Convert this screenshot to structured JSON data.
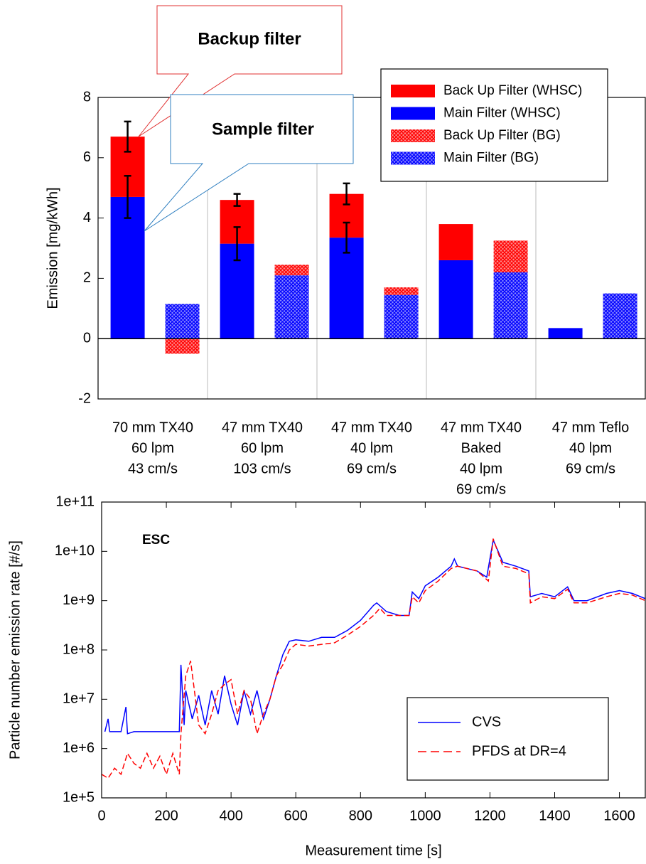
{
  "chart_data": [
    {
      "type": "bar",
      "y_label": "Emission [mg/kWh]",
      "categories": [
        [
          "70 mm TX40",
          "60 lpm",
          "43 cm/s"
        ],
        [
          "47 mm TX40",
          "60 lpm",
          "103 cm/s"
        ],
        [
          "47 mm TX40",
          "40 lpm",
          "69 cm/s"
        ],
        [
          "47 mm TX40",
          "Baked",
          "40 lpm",
          "69 cm/s"
        ],
        [
          "47 mm Teflo",
          "40 lpm",
          "69 cm/s"
        ]
      ],
      "series": [
        {
          "name": "Back Up Filter (WHSC)",
          "color": "#ff0000",
          "pattern": "solid",
          "values": [
            2.0,
            1.45,
            1.45,
            1.2,
            0
          ],
          "errors": [
            0.5,
            0.2,
            0.35,
            null,
            null
          ]
        },
        {
          "name": "Main Filter (WHSC)",
          "color": "#0000ff",
          "pattern": "solid",
          "values": [
            4.7,
            3.15,
            3.35,
            2.6,
            0.35
          ],
          "errors": [
            0.7,
            0.55,
            0.5,
            null,
            null
          ]
        },
        {
          "name": "Back Up Filter (BG)",
          "color": "#ff0000",
          "pattern": "hatch",
          "values": [
            -0.5,
            0.35,
            0.25,
            1.05,
            0
          ]
        },
        {
          "name": "Main Filter (BG)",
          "color": "#0000ff",
          "pattern": "hatch",
          "values": [
            1.15,
            2.1,
            1.45,
            2.2,
            1.5
          ]
        }
      ],
      "ylim": [
        -2,
        8
      ],
      "yticks": [
        -2,
        0,
        2,
        4,
        6,
        8
      ],
      "legend": "upper right",
      "annotations": [
        "Backup filter",
        "Sample filter"
      ]
    },
    {
      "type": "line",
      "x_label": "Measurement time [s]",
      "y_label": "Particle number emission rate [#/s]",
      "annotation": "ESC",
      "yscale": "log",
      "xlim": [
        0,
        1680
      ],
      "xticks": [
        0,
        200,
        400,
        600,
        800,
        1000,
        1200,
        1400,
        1600
      ],
      "ylim": [
        100000,
        100000000000
      ],
      "yticks": [
        {
          "value": 100000,
          "label": "1e+5"
        },
        {
          "value": 1000000,
          "label": "1e+6"
        },
        {
          "value": 10000000,
          "label": "1e+7"
        },
        {
          "value": 100000000,
          "label": "1e+8"
        },
        {
          "value": 1000000000,
          "label": "1e+9"
        },
        {
          "value": 10000000000,
          "label": "1e+10"
        },
        {
          "value": 100000000000,
          "label": "1e+11"
        }
      ],
      "legend": "lower right",
      "series": [
        {
          "name": "CVS",
          "color": "#0000ff",
          "linestyle": "solid",
          "x": [
            10,
            20,
            25,
            40,
            60,
            75,
            80,
            100,
            140,
            180,
            220,
            240,
            245,
            255,
            260,
            280,
            300,
            320,
            340,
            360,
            380,
            400,
            420,
            440,
            460,
            480,
            500,
            520,
            540,
            560,
            580,
            600,
            640,
            680,
            720,
            760,
            800,
            840,
            850,
            880,
            920,
            950,
            960,
            980,
            1000,
            1040,
            1080,
            1090,
            1100,
            1160,
            1190,
            1210,
            1240,
            1280,
            1320,
            1325,
            1360,
            1400,
            1440,
            1460,
            1500,
            1560,
            1600,
            1640,
            1680
          ],
          "values": [
            2200000,
            4000000,
            2200000,
            2200000,
            2200000,
            7000000,
            2000000,
            2200000,
            2200000,
            2200000,
            2200000,
            2200000,
            50000000,
            3000000,
            15000000,
            4000000,
            12000000,
            3000000,
            15000000,
            5000000,
            30000000,
            8000000,
            3000000,
            15000000,
            5000000,
            15000000,
            4000000,
            10000000,
            30000000,
            80000000,
            150000000,
            160000000,
            150000000,
            180000000,
            180000000,
            250000000,
            400000000,
            800000000,
            900000000,
            600000000,
            500000000,
            500000000,
            1500000000,
            1100000000,
            2000000000,
            3000000000,
            5000000000,
            7000000000,
            5000000000,
            4000000000,
            3000000000,
            17000000000,
            6000000000,
            5000000000,
            4000000000,
            1200000000,
            1400000000,
            1200000000,
            1900000000,
            1000000000,
            1000000000,
            1400000000,
            1600000000,
            1400000000,
            1100000000
          ]
        },
        {
          "name": "PFDS at DR=4",
          "color": "#ff0000",
          "linestyle": "dashed",
          "x": [
            0,
            20,
            40,
            60,
            80,
            100,
            120,
            140,
            160,
            180,
            200,
            220,
            240,
            245,
            260,
            275,
            290,
            300,
            320,
            340,
            360,
            380,
            400,
            420,
            440,
            460,
            480,
            500,
            520,
            540,
            560,
            580,
            600,
            640,
            680,
            720,
            760,
            800,
            840,
            860,
            880,
            920,
            950,
            960,
            980,
            1000,
            1040,
            1080,
            1100,
            1160,
            1195,
            1210,
            1240,
            1280,
            1320,
            1325,
            1360,
            1400,
            1440,
            1460,
            1500,
            1560,
            1600,
            1640,
            1680
          ],
          "values": [
            300000,
            250000,
            400000,
            300000,
            800000,
            500000,
            400000,
            800000,
            400000,
            700000,
            300000,
            800000,
            300000,
            2000000,
            30000000,
            60000000,
            10000000,
            3000000,
            2000000,
            5000000,
            15000000,
            20000000,
            25000000,
            5000000,
            15000000,
            10000000,
            2000000,
            5000000,
            10000000,
            30000000,
            50000000,
            100000000,
            130000000,
            120000000,
            130000000,
            140000000,
            200000000,
            300000000,
            500000000,
            700000000,
            500000000,
            500000000,
            500000000,
            1200000000,
            900000000,
            1600000000,
            2500000000,
            4500000000,
            5000000000,
            4000000000,
            2500000000,
            18000000000,
            5000000000,
            4500000000,
            3500000000,
            900000000,
            1200000000,
            1100000000,
            1700000000,
            900000000,
            900000000,
            1200000000,
            1400000000,
            1300000000,
            1000000000
          ]
        }
      ]
    }
  ]
}
